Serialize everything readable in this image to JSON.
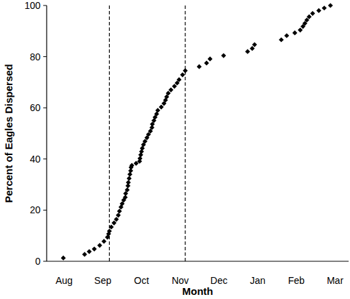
{
  "chart_data": {
    "type": "scatter",
    "x_label": "Month",
    "y_label": "Percent of Eagles Dispersed",
    "xlim": [
      -0.45,
      7.35
    ],
    "xticks": [
      {
        "value": 0,
        "label": "Aug"
      },
      {
        "value": 1,
        "label": "Sep"
      },
      {
        "value": 2,
        "label": "Oct"
      },
      {
        "value": 3,
        "label": "Nov"
      },
      {
        "value": 4,
        "label": "Dec"
      },
      {
        "value": 5,
        "label": "Jan"
      },
      {
        "value": 6,
        "label": "Feb"
      },
      {
        "value": 7,
        "label": "Mar"
      }
    ],
    "ylim": [
      0,
      100
    ],
    "yticks": [
      0,
      20,
      40,
      60,
      80,
      100
    ],
    "grid": false,
    "color": "#000000",
    "marker": "diamond",
    "reference_lines": [
      1.17,
      3.13
    ],
    "x": [
      -0.02,
      0.53,
      0.65,
      0.78,
      0.92,
      1.03,
      1.12,
      1.15,
      1.17,
      1.22,
      1.29,
      1.35,
      1.4,
      1.43,
      1.47,
      1.5,
      1.54,
      1.58,
      1.59,
      1.63,
      1.65,
      1.66,
      1.68,
      1.7,
      1.72,
      1.73,
      1.75,
      1.86,
      1.95,
      1.96,
      1.98,
      2.0,
      2.02,
      2.05,
      2.09,
      2.14,
      2.18,
      2.23,
      2.27,
      2.28,
      2.32,
      2.35,
      2.39,
      2.42,
      2.51,
      2.58,
      2.62,
      2.65,
      2.69,
      2.76,
      2.85,
      2.92,
      2.97,
      3.06,
      3.13,
      3.49,
      3.68,
      3.77,
      4.12,
      4.74,
      4.86,
      4.92,
      5.61,
      5.75,
      5.96,
      6.1,
      6.17,
      6.22,
      6.27,
      6.33,
      6.42,
      6.58,
      6.72,
      6.88
    ],
    "values": [
      1.3,
      2.7,
      3.8,
      4.8,
      6.2,
      7.8,
      9.4,
      10.7,
      11.8,
      13.4,
      15.0,
      16.4,
      18.0,
      19.6,
      21.2,
      22.5,
      23.9,
      25.0,
      26.5,
      27.9,
      29.5,
      30.8,
      32.4,
      34.0,
      35.4,
      36.7,
      37.5,
      38.3,
      39.1,
      40.2,
      41.6,
      42.9,
      44.2,
      45.6,
      46.9,
      48.3,
      49.6,
      50.9,
      52.3,
      53.6,
      55.0,
      56.3,
      57.6,
      59.0,
      60.3,
      61.7,
      63.0,
      64.3,
      65.7,
      67.0,
      68.4,
      69.7,
      71.0,
      72.9,
      74.5,
      76.1,
      77.5,
      79.1,
      80.4,
      82.0,
      83.2,
      84.7,
      86.6,
      88.2,
      89.3,
      90.4,
      91.8,
      93.0,
      94.3,
      95.6,
      96.9,
      98.0,
      99.0,
      100.0
    ]
  }
}
